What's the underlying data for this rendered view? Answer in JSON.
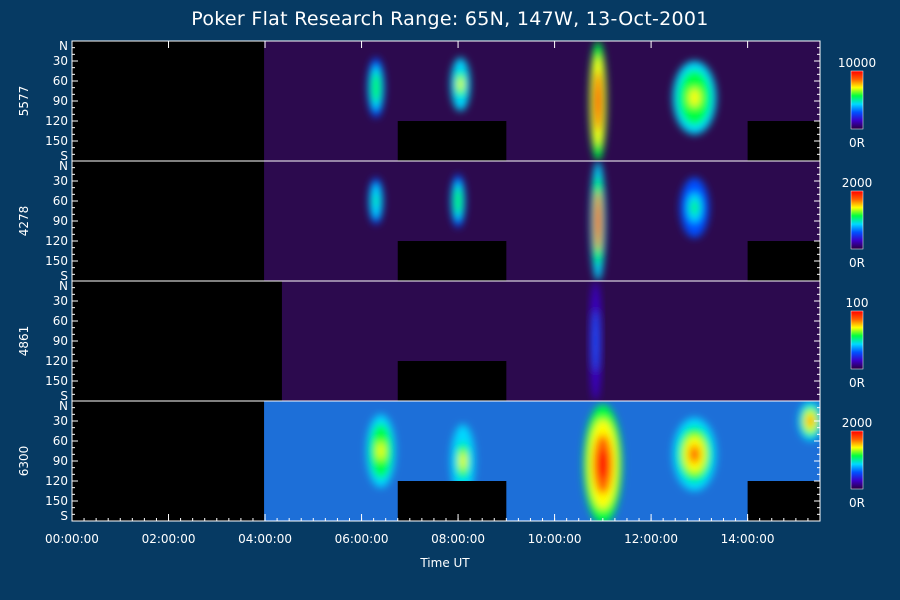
{
  "chart_data": {
    "type": "heatmap",
    "title": "Poker Flat Research Range: 65N, 147W, 13-Oct-2001",
    "xlabel": "Time UT",
    "x_ticks": [
      "00:00:00",
      "02:00:00",
      "04:00:00",
      "06:00:00",
      "08:00:00",
      "10:00:00",
      "12:00:00",
      "14:00:00"
    ],
    "xlim_hours": [
      0,
      15.5
    ],
    "y_ticks": [
      "N",
      "30",
      "60",
      "90",
      "120",
      "150",
      "S"
    ],
    "ylim_degrees": [
      0,
      180
    ],
    "colorbar_colors": [
      "#2a0040",
      "#3a00c8",
      "#0050ff",
      "#00d8ff",
      "#00ff40",
      "#ffff00",
      "#ff6000",
      "#ff0000"
    ],
    "panels": [
      {
        "wavelength": "5577",
        "cbar_max": "10000",
        "cbar_min": "0R",
        "blocks": [
          {
            "t0": 0,
            "t1": 3.98,
            "type": "no-data"
          },
          {
            "t0": 6.75,
            "t1": 9.0,
            "type": "gap",
            "y0": 120,
            "y1": 180
          },
          {
            "t0": 14.0,
            "t1": 15.5,
            "type": "gap",
            "y0": 120,
            "y1": 180
          }
        ],
        "features": [
          {
            "t": 6.3,
            "y": 70,
            "w": 0.35,
            "h": 90,
            "level": 0.6
          },
          {
            "t": 8.05,
            "y": 65,
            "w": 0.4,
            "h": 80,
            "level": 0.7
          },
          {
            "t": 10.9,
            "y": 90,
            "w": 0.35,
            "h": 180,
            "level": 1.0
          },
          {
            "t": 12.9,
            "y": 85,
            "w": 0.9,
            "h": 110,
            "level": 0.75
          }
        ]
      },
      {
        "wavelength": "4278",
        "cbar_max": "2000",
        "cbar_min": "0R",
        "blocks": [
          {
            "t0": 0,
            "t1": 3.98,
            "type": "no-data"
          },
          {
            "t0": 6.75,
            "t1": 9.0,
            "type": "gap",
            "y0": 120,
            "y1": 180
          },
          {
            "t0": 14.0,
            "t1": 15.5,
            "type": "gap",
            "y0": 120,
            "y1": 180
          }
        ],
        "features": [
          {
            "t": 6.3,
            "y": 60,
            "w": 0.3,
            "h": 70,
            "level": 0.55
          },
          {
            "t": 8.0,
            "y": 60,
            "w": 0.3,
            "h": 80,
            "level": 0.6
          },
          {
            "t": 10.9,
            "y": 90,
            "w": 0.3,
            "h": 180,
            "level": 0.95
          },
          {
            "t": 12.9,
            "y": 70,
            "w": 0.6,
            "h": 90,
            "level": 0.5
          }
        ]
      },
      {
        "wavelength": "4861",
        "cbar_max": "100",
        "cbar_min": "0R",
        "blocks": [
          {
            "t0": 0,
            "t1": 4.35,
            "type": "no-data"
          },
          {
            "t0": 6.75,
            "t1": 9.0,
            "type": "gap",
            "y0": 120,
            "y1": 180
          }
        ],
        "features": [
          {
            "t": 10.85,
            "y": 90,
            "w": 0.25,
            "h": 180,
            "level": 0.3
          }
        ]
      },
      {
        "wavelength": "6300",
        "cbar_max": "2000",
        "cbar_min": "0R",
        "blocks": [
          {
            "t0": 0,
            "t1": 3.98,
            "type": "no-data"
          },
          {
            "t0": 6.75,
            "t1": 9.0,
            "type": "gap",
            "y0": 120,
            "y1": 180
          },
          {
            "t0": 14.0,
            "t1": 15.5,
            "type": "gap",
            "y0": 120,
            "y1": 180
          }
        ],
        "features": [
          {
            "t": 6.4,
            "y": 75,
            "w": 0.6,
            "h": 110,
            "level": 0.75
          },
          {
            "t": 8.1,
            "y": 90,
            "w": 0.5,
            "h": 110,
            "level": 0.7
          },
          {
            "t": 11.0,
            "y": 95,
            "w": 0.8,
            "h": 180,
            "level": 1.0
          },
          {
            "t": 12.9,
            "y": 80,
            "w": 0.9,
            "h": 110,
            "level": 0.8
          },
          {
            "t": 15.3,
            "y": 30,
            "w": 0.5,
            "h": 60,
            "level": 0.9
          }
        ]
      }
    ]
  }
}
